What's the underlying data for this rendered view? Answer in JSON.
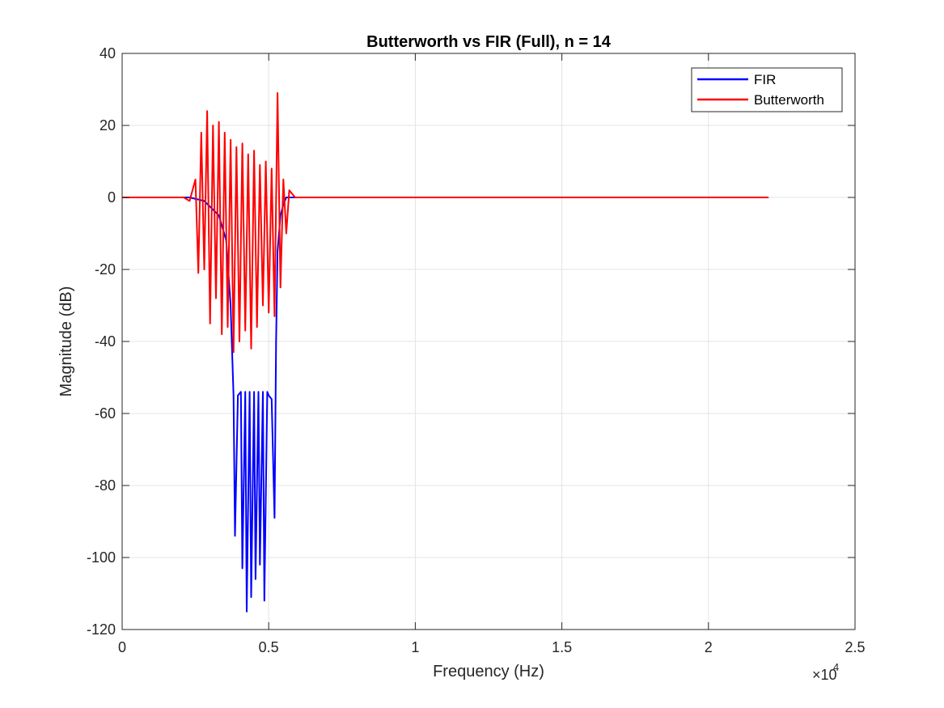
{
  "chart_data": {
    "type": "line",
    "title": "Butterworth vs FIR (Full), n = 14",
    "xlabel": "Frequency (Hz)",
    "ylabel": "Magnitude (dB)",
    "x_exponent_label": "×10",
    "x_exponent_power": "4",
    "xlim": [
      0,
      25000
    ],
    "ylim": [
      -120,
      40
    ],
    "xticks": [
      0,
      5000,
      10000,
      15000,
      20000,
      25000
    ],
    "xtick_labels": [
      "0",
      "0.5",
      "1",
      "1.5",
      "2",
      "2.5"
    ],
    "yticks": [
      -120,
      -100,
      -80,
      -60,
      -40,
      -20,
      0,
      20,
      40
    ],
    "ytick_labels": [
      "-120",
      "-100",
      "-80",
      "-60",
      "-40",
      "-20",
      "0",
      "20",
      "40"
    ],
    "grid": true,
    "legend_position": "top-right",
    "series": [
      {
        "name": "FIR",
        "color": "#0000ff",
        "x": [
          0,
          1800,
          2300,
          2800,
          3300,
          3550,
          3700,
          3800,
          3850,
          3950,
          4050,
          4100,
          4200,
          4250,
          4350,
          4400,
          4500,
          4550,
          4650,
          4700,
          4800,
          4850,
          4950,
          5000,
          5100,
          5200,
          5250,
          5300,
          5400,
          5500,
          5600,
          5800,
          6200,
          22050
        ],
        "y": [
          0,
          0,
          0,
          -1,
          -5,
          -12,
          -30,
          -55,
          -94,
          -55,
          -54,
          -103,
          -54,
          -115,
          -54,
          -111,
          -54,
          -106,
          -54,
          -102,
          -54,
          -112,
          -54,
          -55,
          -56,
          -89,
          -40,
          -15,
          -5,
          -2,
          0,
          0,
          0,
          0
        ]
      },
      {
        "name": "Butterworth",
        "color": "#ff0000",
        "x": [
          0,
          1800,
          2100,
          2300,
          2500,
          2600,
          2700,
          2800,
          2900,
          3000,
          3100,
          3200,
          3300,
          3400,
          3500,
          3600,
          3700,
          3800,
          3900,
          4000,
          4100,
          4200,
          4300,
          4400,
          4500,
          4600,
          4700,
          4800,
          4900,
          5000,
          5100,
          5200,
          5300,
          5400,
          5500,
          5600,
          5700,
          5900,
          6200,
          22050
        ],
        "y": [
          0,
          0,
          0,
          -1,
          5,
          -21,
          18,
          -20,
          24,
          -35,
          20,
          -28,
          21,
          -38,
          18,
          -36,
          16,
          -43,
          14,
          -40,
          15,
          -37,
          12,
          -42,
          13,
          -36,
          9,
          -30,
          10,
          -32,
          8,
          -33,
          29,
          -25,
          5,
          -10,
          2,
          0,
          0,
          0
        ]
      }
    ]
  }
}
